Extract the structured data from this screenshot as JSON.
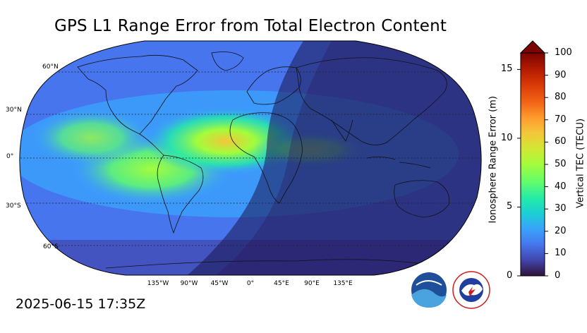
{
  "title": "GPS L1 Range Error from Total Electron Content",
  "timestamp": "2025-06-15 17:35Z",
  "map": {
    "projection": "Robinson",
    "lon_labels": [
      "135°W",
      "90°W",
      "45°W",
      "0°",
      "45°E",
      "90°E",
      "135°E"
    ],
    "lat_labels": [
      "60°N",
      "30°N",
      "0°",
      "30°S",
      "60°S"
    ],
    "grid": true,
    "land_outlines": true,
    "night_side": "Eastern Hemisphere shaded (Europe, Africa, Asia, Australia)",
    "high_tec_regions": [
      "equatorial Americas",
      "equatorial Atlantic",
      "West Africa"
    ]
  },
  "colorbar": {
    "left_axis_title": "Ionosphere Range Error (m)",
    "right_axis_title": "Vertical TEC (TECU)",
    "left_ticks": [
      "0",
      "5",
      "10",
      "15"
    ],
    "right_ticks": [
      "0",
      "10",
      "20",
      "30",
      "40",
      "50",
      "60",
      "70",
      "80",
      "90",
      "100"
    ],
    "range_tecu": [
      0,
      100
    ],
    "range_m": [
      0,
      16.2
    ],
    "extend": "max",
    "colormap": [
      "#30123b",
      "#4145ab",
      "#4675ed",
      "#39a2fc",
      "#1bcfd4",
      "#24eca6",
      "#61fc6c",
      "#a4fc3b",
      "#d1e834",
      "#f3c63a",
      "#fe9b2d",
      "#f36315",
      "#d93806",
      "#b11901",
      "#7a0402"
    ]
  },
  "logos": [
    {
      "name": "NOAA",
      "text": "NOAA",
      "color": "#1f4e9a"
    },
    {
      "name": "National Weather Service",
      "text": "NATIONAL WEATHER SERVICE",
      "color": "#cf1d1d"
    }
  ]
}
